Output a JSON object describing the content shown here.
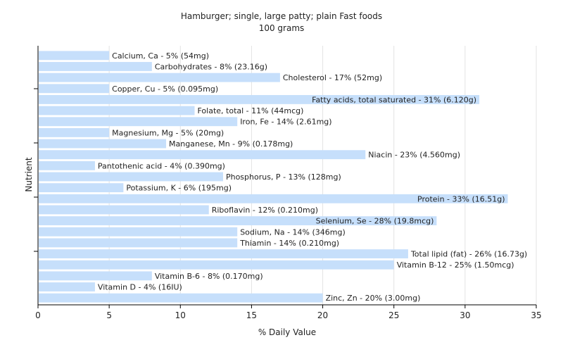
{
  "chart_data": {
    "type": "bar",
    "orientation": "horizontal",
    "title": "Hamburger; single, large patty; plain Fast foods",
    "subtitle": "100 grams",
    "xlabel": "% Daily Value",
    "ylabel": "Nutrient",
    "xlim": [
      0,
      35
    ],
    "xticks": [
      0,
      5,
      10,
      15,
      20,
      25,
      30,
      35
    ],
    "grid": "vertical",
    "legend": "none",
    "bar_color": "#c6dffb",
    "bars": [
      {
        "category": "Calcium, Ca",
        "value": 5,
        "label": "Calcium, Ca - 5% (54mg)"
      },
      {
        "category": "Carbohydrates",
        "value": 8,
        "label": "Carbohydrates - 8% (23.16g)"
      },
      {
        "category": "Cholesterol",
        "value": 17,
        "label": "Cholesterol - 17% (52mg)"
      },
      {
        "category": "Copper, Cu",
        "value": 5,
        "label": "Copper, Cu - 5% (0.095mg)"
      },
      {
        "category": "Fatty acids, total saturated",
        "value": 31,
        "label": "Fatty acids, total saturated - 31% (6.120g)"
      },
      {
        "category": "Folate, total",
        "value": 11,
        "label": "Folate, total - 11% (44mcg)"
      },
      {
        "category": "Iron, Fe",
        "value": 14,
        "label": "Iron, Fe - 14% (2.61mg)"
      },
      {
        "category": "Magnesium, Mg",
        "value": 5,
        "label": "Magnesium, Mg - 5% (20mg)"
      },
      {
        "category": "Manganese, Mn",
        "value": 9,
        "label": "Manganese, Mn - 9% (0.178mg)"
      },
      {
        "category": "Niacin",
        "value": 23,
        "label": "Niacin - 23% (4.560mg)"
      },
      {
        "category": "Pantothenic acid",
        "value": 4,
        "label": "Pantothenic acid - 4% (0.390mg)"
      },
      {
        "category": "Phosphorus, P",
        "value": 13,
        "label": "Phosphorus, P - 13% (128mg)"
      },
      {
        "category": "Potassium, K",
        "value": 6,
        "label": "Potassium, K - 6% (195mg)"
      },
      {
        "category": "Protein",
        "value": 33,
        "label": "Protein - 33% (16.51g)"
      },
      {
        "category": "Riboflavin",
        "value": 12,
        "label": "Riboflavin - 12% (0.210mg)"
      },
      {
        "category": "Selenium, Se",
        "value": 28,
        "label": "Selenium, Se - 28% (19.8mcg)"
      },
      {
        "category": "Sodium, Na",
        "value": 14,
        "label": "Sodium, Na - 14% (346mg)"
      },
      {
        "category": "Thiamin",
        "value": 14,
        "label": "Thiamin - 14% (0.210mg)"
      },
      {
        "category": "Total lipid (fat)",
        "value": 26,
        "label": "Total lipid (fat) - 26% (16.73g)"
      },
      {
        "category": "Vitamin B-12",
        "value": 25,
        "label": "Vitamin B-12 - 25% (1.50mcg)"
      },
      {
        "category": "Vitamin B-6",
        "value": 8,
        "label": "Vitamin B-6 - 8% (0.170mg)"
      },
      {
        "category": "Vitamin D",
        "value": 4,
        "label": "Vitamin D - 4% (16IU)"
      },
      {
        "category": "Zinc, Zn",
        "value": 20,
        "label": "Zinc, Zn - 20% (3.00mg)"
      }
    ]
  }
}
